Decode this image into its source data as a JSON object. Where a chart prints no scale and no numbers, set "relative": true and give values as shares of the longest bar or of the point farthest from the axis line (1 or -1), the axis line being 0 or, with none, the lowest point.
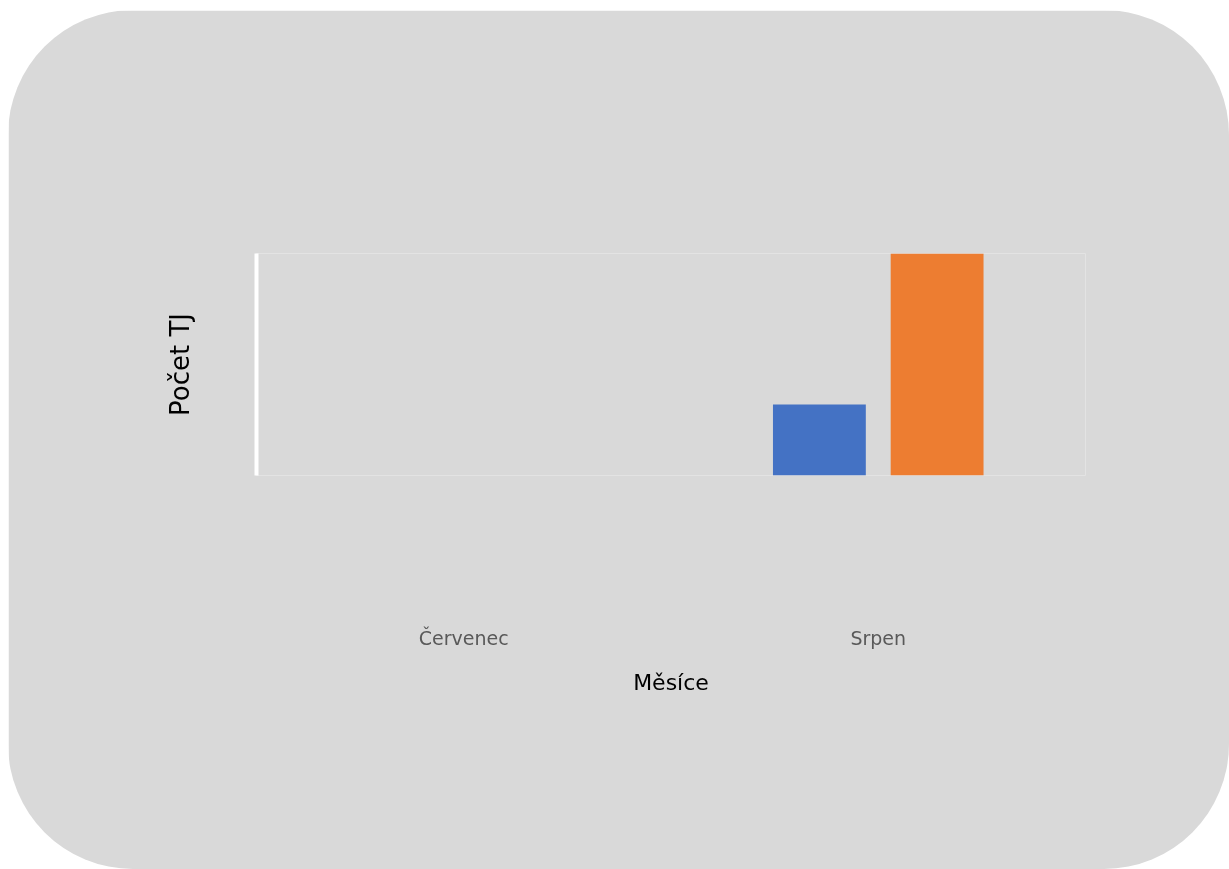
{
  "chart_data": {
    "type": "bar",
    "xlabel": "Měsíce",
    "ylabel": "Počet TJ",
    "categories": [
      "Červenec",
      "Srpen"
    ],
    "relative": true,
    "series": [
      {
        "color": "#4472c4",
        "values": [
          null,
          0.32
        ]
      },
      {
        "color": "#ed7d31",
        "values": [
          null,
          1
        ]
      }
    ]
  }
}
